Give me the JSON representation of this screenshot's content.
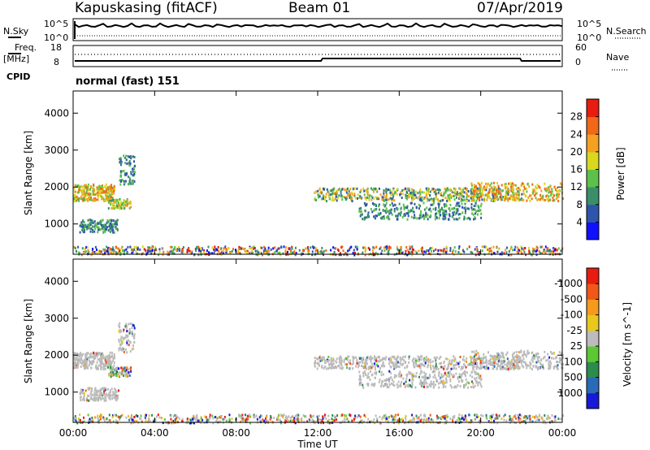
{
  "header": {
    "title": "Kapuskasing (fitACF)",
    "beam": "Beam 01",
    "date": "07/Apr/2019"
  },
  "top_panels": {
    "nsky_label": "N.Sky",
    "nsky_ticks": [
      "10^5",
      "10^0"
    ],
    "nsearch_label": "N.Search",
    "nsearch_ticks": [
      "10^5",
      "10^0"
    ],
    "freq_label": "Freq.",
    "freq_unit": "[MHz]",
    "freq_ticks": [
      "18",
      "8"
    ],
    "nave_label": "Nave",
    "nave_ticks": [
      "60",
      "0"
    ],
    "cpid_label": "CPID",
    "cpid_mode": "normal (fast) 151"
  },
  "chart_data": [
    {
      "type": "heatmap",
      "quantity": "Power",
      "xlabel": "",
      "ylabel": "Slant Range [km]",
      "x_ticks": [
        "00:00",
        "04:00",
        "08:00",
        "12:00",
        "16:00",
        "20:00",
        "00:00"
      ],
      "xlim_hours": [
        0,
        24
      ],
      "y_ticks": [
        1000,
        2000,
        3000,
        4000
      ],
      "ylim_km": [
        180,
        4600
      ],
      "colorbar": {
        "label": "Power [dB]",
        "ticks": [
          "4",
          "8",
          "12",
          "16",
          "20",
          "24",
          "28"
        ],
        "colors": [
          "#1010ff",
          "#2e55aa",
          "#3a8f6a",
          "#5dc04a",
          "#d8d81e",
          "#f4a020",
          "#f06818",
          "#e81c10"
        ]
      }
    },
    {
      "type": "heatmap",
      "quantity": "Velocity",
      "xlabel": "Time UT",
      "ylabel": "Slant Range [km]",
      "x_ticks": [
        "00:00",
        "04:00",
        "08:00",
        "12:00",
        "16:00",
        "20:00",
        "00:00"
      ],
      "xlim_hours": [
        0,
        24
      ],
      "y_ticks": [
        1000,
        2000,
        3000,
        4000
      ],
      "ylim_km": [
        180,
        4600
      ],
      "colorbar": {
        "label": "Velocity [m s^-1]",
        "ticks": [
          "1000",
          "500",
          "100",
          "25",
          "-25",
          "-100",
          "-500",
          "-1000"
        ],
        "colors": [
          "#1818d8",
          "#2a6ab8",
          "#2c8c4c",
          "#5cc832",
          "#bcbcbc",
          "#e8c81c",
          "#f49a1c",
          "#f05818",
          "#e81c10"
        ]
      }
    }
  ],
  "colors": {
    "ground_scatter": "#bbbbbb",
    "axis": "#000000"
  }
}
